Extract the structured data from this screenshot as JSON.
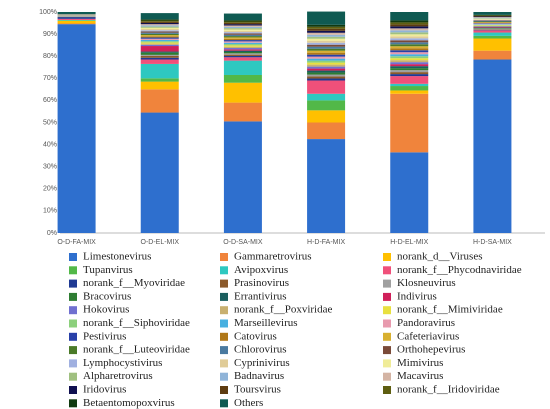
{
  "chart_data": {
    "type": "bar",
    "stacked": true,
    "categories": [
      "O-D-FA-MIX",
      "O-D-EL-MIX",
      "O-D-SA-MIX",
      "H-D-FA-MIX",
      "H-D-EL-MIX",
      "H-D-SA-MIX"
    ],
    "ylim": [
      0,
      100
    ],
    "yticks": [
      {
        "value": 0,
        "label": "0%"
      },
      {
        "value": 10,
        "label": "10%"
      },
      {
        "value": 20,
        "label": "20%"
      },
      {
        "value": 30,
        "label": "30%"
      },
      {
        "value": 40,
        "label": "40%"
      },
      {
        "value": 50,
        "label": "50%"
      },
      {
        "value": 60,
        "label": "60%"
      },
      {
        "value": 70,
        "label": "70%"
      },
      {
        "value": 80,
        "label": "80%"
      },
      {
        "value": 90,
        "label": "90%"
      },
      {
        "value": 100,
        "label": "100%"
      }
    ],
    "grid": false,
    "series": [
      {
        "name": "Limestonevirus",
        "color": "#2e6fce",
        "values": [
          94.5,
          54.5,
          50.5,
          42.5,
          36.5,
          78.5
        ]
      },
      {
        "name": "Gammaretrovirus",
        "color": "#f0843c",
        "values": [
          0.3,
          10.5,
          8.5,
          7.5,
          26.5,
          4
        ]
      },
      {
        "name": "norank_d__Viruses",
        "color": "#ffc000",
        "values": [
          1.2,
          3.5,
          9,
          5.5,
          1.5,
          5.5
        ]
      },
      {
        "name": "Tupanvirus",
        "color": "#52b848",
        "values": [
          0.2,
          1.5,
          3.5,
          4.5,
          2,
          1.2
        ]
      },
      {
        "name": "Avipoxvirus",
        "color": "#2ec8c0",
        "values": [
          0.2,
          6.5,
          6.5,
          3,
          1,
          1.5
        ]
      },
      {
        "name": "norank_f__Phycodnaviridae",
        "color": "#f0507a",
        "values": [
          0.5,
          2,
          1.5,
          6,
          3.5,
          1
        ]
      },
      {
        "name": "norank_f__Myoviridae",
        "color": "#1f3a93",
        "values": [
          0.8,
          0.8,
          0.6,
          0.9,
          0.9,
          0.25
        ]
      },
      {
        "name": "Prasinovirus",
        "color": "#8b5a2b",
        "values": [
          0.05,
          0.8,
          0.6,
          0.9,
          0.9,
          0.25
        ]
      },
      {
        "name": "Klosneuvirus",
        "color": "#a0a0a0",
        "values": [
          0.05,
          0.5,
          0.6,
          0.9,
          0.9,
          0.25
        ]
      },
      {
        "name": "Bracovirus",
        "color": "#2e7d32",
        "values": [
          0.05,
          1,
          0.6,
          0.9,
          0.9,
          0.25
        ]
      },
      {
        "name": "Errantivirus",
        "color": "#1a5f5f",
        "values": [
          0.05,
          0.5,
          0.6,
          0.9,
          0.9,
          0.25
        ]
      },
      {
        "name": "Indivirus",
        "color": "#d0205a",
        "values": [
          0.05,
          2.5,
          0.6,
          0.9,
          0.9,
          0.25
        ]
      },
      {
        "name": "Hokovirus",
        "color": "#7070d0",
        "values": [
          0.05,
          0.55,
          0.6,
          0.9,
          0.9,
          0.25
        ]
      },
      {
        "name": "norank_f__Poxviridae",
        "color": "#c8b070",
        "values": [
          0.05,
          0.55,
          0.6,
          0.9,
          0.9,
          0.25
        ]
      },
      {
        "name": "norank_f__Mimiviridae",
        "color": "#e8e040",
        "values": [
          0.05,
          0.55,
          0.6,
          0.9,
          0.9,
          0.25
        ]
      },
      {
        "name": "norank_f__Siphoviridae",
        "color": "#8cd07c",
        "values": [
          0.05,
          0.55,
          0.6,
          0.9,
          0.9,
          0.25
        ]
      },
      {
        "name": "Marseillevirus",
        "color": "#48b0e0",
        "values": [
          0.05,
          0.55,
          0.6,
          0.9,
          0.9,
          0.25
        ]
      },
      {
        "name": "Pandoravirus",
        "color": "#e89aae",
        "values": [
          0.05,
          0.55,
          0.6,
          0.9,
          0.9,
          0.25
        ]
      },
      {
        "name": "Pestivirus",
        "color": "#2840a8",
        "values": [
          0.05,
          0.55,
          0.6,
          0.9,
          0.9,
          0.25
        ]
      },
      {
        "name": "Catovirus",
        "color": "#b07818",
        "values": [
          0.05,
          0.55,
          0.6,
          0.9,
          0.9,
          0.25
        ]
      },
      {
        "name": "Cafeteriavirus",
        "color": "#d8b030",
        "values": [
          0.05,
          0.55,
          0.6,
          0.9,
          0.9,
          0.25
        ]
      },
      {
        "name": "norank_f__Luteoviridae",
        "color": "#4a7a28",
        "values": [
          0.05,
          0.55,
          0.6,
          0.9,
          0.9,
          0.25
        ]
      },
      {
        "name": "Chlorovirus",
        "color": "#4a7aa0",
        "values": [
          0.05,
          0.55,
          0.6,
          0.9,
          0.9,
          0.25
        ]
      },
      {
        "name": "Orthohepevirus",
        "color": "#7a4a38",
        "values": [
          0.05,
          0.55,
          0.6,
          0.9,
          0.9,
          0.25
        ]
      },
      {
        "name": "Lymphocystivirus",
        "color": "#a0b0e0",
        "values": [
          0.05,
          0.55,
          0.6,
          0.9,
          0.9,
          0.25
        ]
      },
      {
        "name": "Cyprinivirus",
        "color": "#e0cc98",
        "values": [
          0.05,
          0.55,
          0.6,
          0.9,
          0.9,
          0.25
        ]
      },
      {
        "name": "Mimivirus",
        "color": "#f0ec98",
        "values": [
          0.05,
          0.55,
          0.6,
          0.9,
          0.9,
          0.25
        ]
      },
      {
        "name": "Alpharetrovirus",
        "color": "#a0c080",
        "values": [
          0.05,
          0.55,
          0.6,
          0.9,
          0.9,
          0.25
        ]
      },
      {
        "name": "Badnavirus",
        "color": "#90b4d8",
        "values": [
          0.05,
          0.55,
          0.6,
          0.9,
          0.9,
          0.25
        ]
      },
      {
        "name": "Macavirus",
        "color": "#d4b4a4",
        "values": [
          0.05,
          0.55,
          0.6,
          0.9,
          0.9,
          0.25
        ]
      },
      {
        "name": "Iridovirus",
        "color": "#101050",
        "values": [
          0.05,
          0.55,
          0.6,
          0.9,
          0.9,
          0.25
        ]
      },
      {
        "name": "Toursvirus",
        "color": "#5e3c10",
        "values": [
          0.05,
          0.55,
          0.6,
          0.9,
          0.9,
          0.25
        ]
      },
      {
        "name": "norank_f__Iridoviridae",
        "color": "#5e5e10",
        "values": [
          0.05,
          0.55,
          0.6,
          0.9,
          0.9,
          0.25
        ]
      },
      {
        "name": "Betaentomopoxvirus",
        "color": "#103a10",
        "values": [
          0.05,
          0.55,
          0.6,
          0.9,
          0.9,
          0.25
        ]
      },
      {
        "name": "Others",
        "color": "#0f5a52",
        "values": [
          0.95,
          2.8,
          3,
          6,
          3.8,
          1.3
        ]
      }
    ]
  }
}
